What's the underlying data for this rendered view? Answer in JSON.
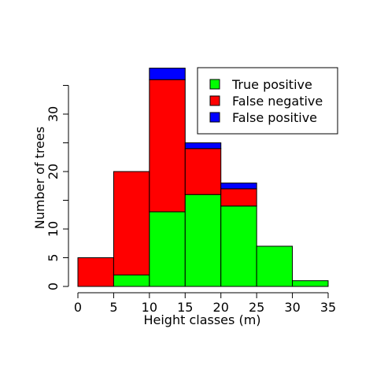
{
  "chart_data": {
    "type": "bar",
    "stacked": true,
    "bins": [
      [
        0,
        5
      ],
      [
        5,
        10
      ],
      [
        10,
        15
      ],
      [
        15,
        20
      ],
      [
        20,
        25
      ],
      [
        25,
        30
      ],
      [
        30,
        35
      ]
    ],
    "series": [
      {
        "name": "True positive",
        "color": "#00ff00",
        "values": [
          0,
          2,
          13,
          16,
          14,
          7,
          1
        ]
      },
      {
        "name": "False negative",
        "color": "#ff0000",
        "values": [
          5,
          18,
          23,
          8,
          3,
          0,
          0
        ]
      },
      {
        "name": "False positive",
        "color": "#0000ff",
        "values": [
          0,
          0,
          2,
          1,
          1,
          0,
          0
        ]
      }
    ],
    "xlabel": "Height classes (m)",
    "ylabel": "Number of trees",
    "xlim": [
      0,
      35
    ],
    "ylim": [
      0,
      38
    ],
    "x_ticks": [
      0,
      5,
      10,
      15,
      20,
      25,
      30,
      35
    ],
    "x_tick_labels": [
      "0",
      "5",
      "10",
      "15",
      "20",
      "25",
      "30",
      "35"
    ],
    "y_ticks": [
      0,
      5,
      10,
      15,
      20,
      25,
      30,
      35
    ],
    "y_tick_labels": [
      "0",
      "5",
      "10",
      "",
      "20",
      "",
      "30",
      ""
    ],
    "legend_position": "top-right",
    "grid": false
  }
}
